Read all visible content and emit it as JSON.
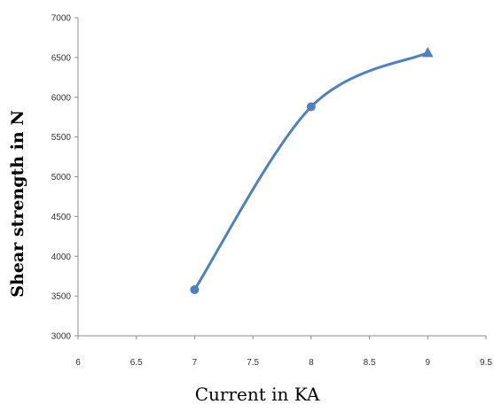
{
  "chart_data": {
    "type": "line",
    "title": "",
    "xlabel": "Current in KA",
    "ylabel": "Shear strength in N",
    "xlim": [
      6,
      9.5
    ],
    "ylim": [
      3000,
      7000
    ],
    "x_ticks": [
      "6",
      "6.5",
      "7",
      "7.5",
      "8",
      "8.5",
      "9",
      "9.5"
    ],
    "y_ticks": [
      "3000",
      "3500",
      "4000",
      "4500",
      "5000",
      "5500",
      "6000",
      "6500",
      "7000"
    ],
    "grid": false,
    "legend": "none",
    "series": [
      {
        "color": "#4f81bd",
        "x": [
          7,
          8,
          9
        ],
        "y": [
          3580,
          5880,
          6560
        ],
        "markers": [
          "circle",
          "circle",
          "triangle"
        ]
      }
    ]
  }
}
